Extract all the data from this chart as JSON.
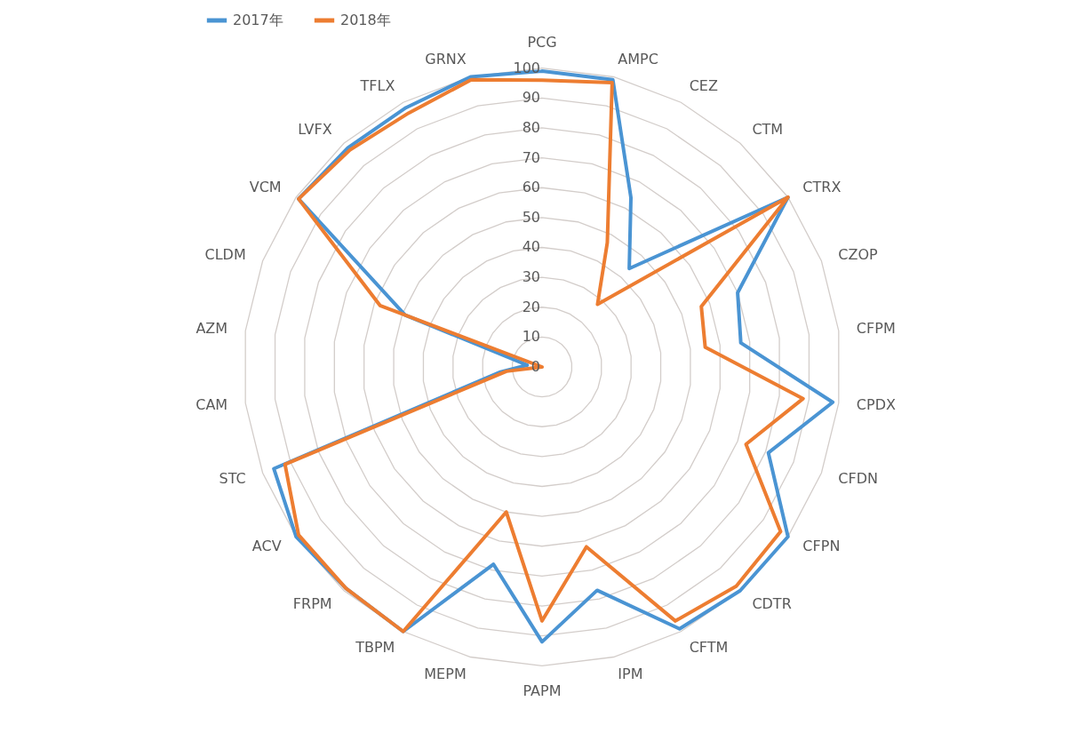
{
  "chart_data": {
    "type": "radar",
    "categories": [
      "PCG",
      "AMPC",
      "CEZ",
      "CTM",
      "CTRX",
      "CZOP",
      "CFPM",
      "CPDX",
      "CFDN",
      "CFPN",
      "CDTR",
      "CFTM",
      "IPM",
      "PAPM",
      "MEPM",
      "TBPM",
      "FRPM",
      "ACV",
      "STC",
      "CAM",
      "AZM",
      "CLDM",
      "VCM",
      "LVFX",
      "TFLX",
      "GRNX"
    ],
    "series": [
      {
        "name": "2017年",
        "color": "#4a94d3",
        "values": [
          99,
          99,
          64,
          44,
          100,
          70,
          67,
          98,
          81,
          100,
          100,
          99,
          77,
          92,
          68,
          100,
          99,
          100,
          96,
          14,
          5,
          49,
          99,
          98,
          98,
          100
        ]
      },
      {
        "name": "2018年",
        "color": "#ed7d31",
        "values": [
          96,
          98,
          47,
          28,
          100,
          57,
          55,
          88,
          73,
          97,
          98,
          96,
          62,
          85,
          50,
          100,
          99,
          99,
          92,
          12,
          0,
          58,
          99,
          97,
          96,
          99
        ]
      }
    ],
    "ylim": [
      0,
      100
    ],
    "yticks": [
      0,
      10,
      20,
      30,
      40,
      50,
      60,
      70,
      80,
      90,
      100
    ],
    "grid": true,
    "legend": "top"
  }
}
